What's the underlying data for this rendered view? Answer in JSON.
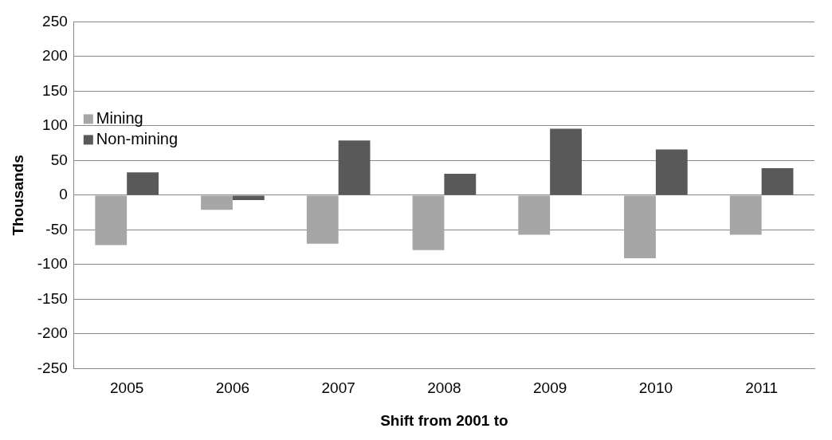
{
  "chart_data": {
    "type": "bar",
    "xlabel": "Shift from 2001 to",
    "ylabel": "Thousands",
    "categories": [
      "2005",
      "2006",
      "2007",
      "2008",
      "2009",
      "2010",
      "2011"
    ],
    "series": [
      {
        "name": "Mining",
        "color": "#a6a6a6",
        "values": [
          -72,
          -21,
          -70,
          -79,
          -57,
          -91,
          -57
        ]
      },
      {
        "name": "Non-mining",
        "color": "#595959",
        "values": [
          33,
          -7,
          79,
          31,
          96,
          66,
          39
        ]
      }
    ],
    "ylim": [
      -250,
      250
    ],
    "yticks": [
      -250,
      -200,
      -150,
      -100,
      -50,
      0,
      50,
      100,
      150,
      200,
      250
    ],
    "grid": "y",
    "legend": "left"
  }
}
